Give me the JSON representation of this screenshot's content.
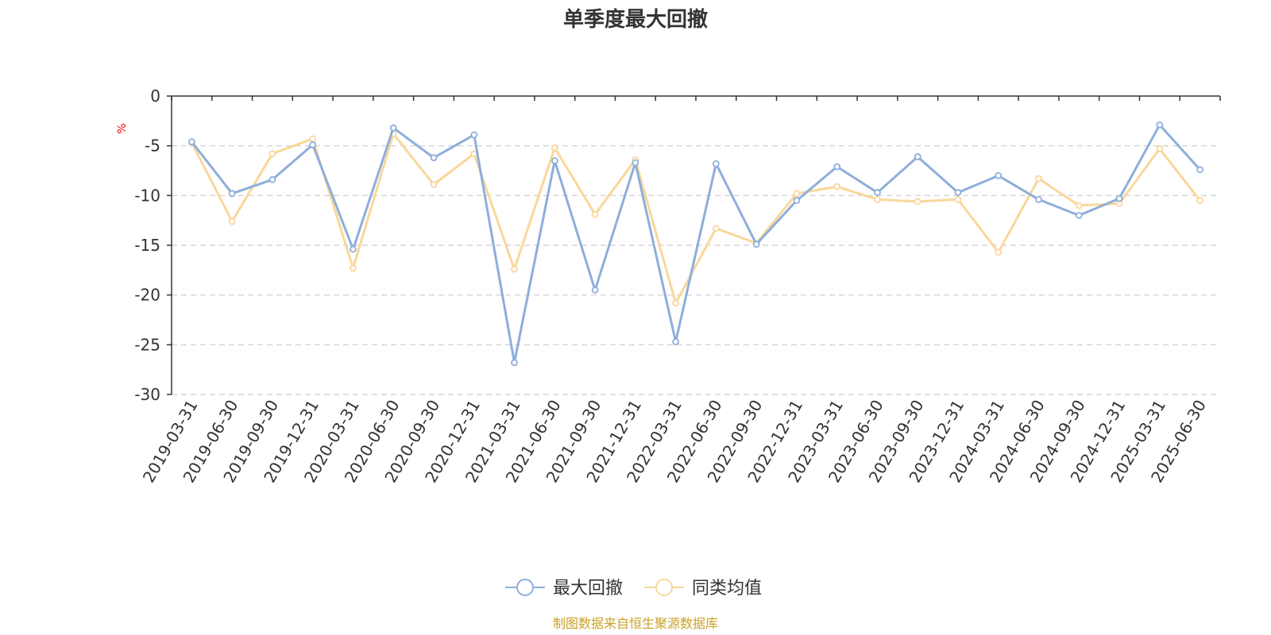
{
  "chart_data": {
    "type": "line",
    "title": "单季度最大回撤",
    "ylabel": "%",
    "ylim": [
      -30,
      0
    ],
    "yticks": [
      0,
      -5,
      -10,
      -15,
      -20,
      -25,
      -30
    ],
    "grid": true,
    "legend_position": "bottom-center",
    "categories": [
      "2019-03-31",
      "2019-06-30",
      "2019-09-30",
      "2019-12-31",
      "2020-03-31",
      "2020-06-30",
      "2020-09-30",
      "2020-12-31",
      "2021-03-31",
      "2021-06-30",
      "2021-09-30",
      "2021-12-31",
      "2022-03-31",
      "2022-06-30",
      "2022-09-30",
      "2022-12-31",
      "2023-03-31",
      "2023-06-30",
      "2023-09-30",
      "2023-12-31",
      "2024-03-31",
      "2024-06-30",
      "2024-09-30",
      "2024-12-31",
      "2025-03-31",
      "2025-06-30"
    ],
    "series": [
      {
        "name": "最大回撤",
        "color": "#8eaedb",
        "values": [
          -4.6,
          -9.8,
          -8.4,
          -4.9,
          -15.4,
          -3.2,
          -6.2,
          -3.9,
          -26.8,
          -6.5,
          -19.5,
          -6.7,
          -24.7,
          -6.8,
          -14.9,
          -10.5,
          -7.1,
          -9.7,
          -6.1,
          -9.7,
          -8.0,
          -10.4,
          -12.0,
          -10.3,
          -2.9,
          -7.4
        ]
      },
      {
        "name": "同类均值",
        "color": "#f9d79b",
        "values": [
          -4.7,
          -12.6,
          -5.8,
          -4.3,
          -17.3,
          -3.8,
          -8.9,
          -5.8,
          -17.4,
          -5.2,
          -11.9,
          -6.4,
          -20.8,
          -13.3,
          -14.8,
          -9.8,
          -9.1,
          -10.4,
          -10.6,
          -10.4,
          -15.7,
          -8.3,
          -11.0,
          -10.8,
          -5.3,
          -10.5
        ]
      }
    ]
  },
  "source": "制图数据来自恒生聚源数据库"
}
